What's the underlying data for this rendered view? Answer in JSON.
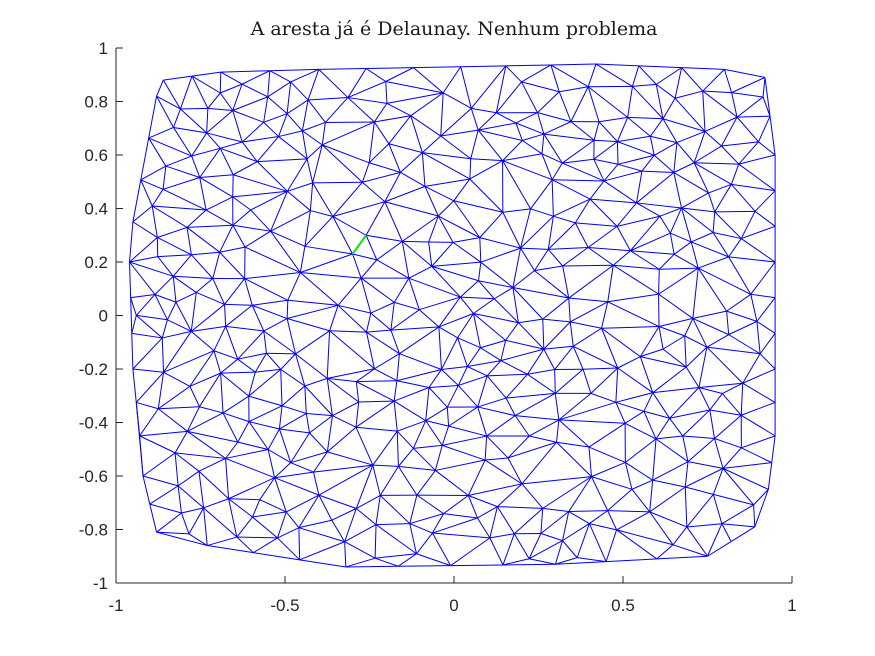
{
  "chart_data": {
    "type": "mesh",
    "title": "A aresta já é Delaunay. Nenhum problema",
    "xlabel": "",
    "ylabel": "",
    "xlim": [
      -1,
      1
    ],
    "ylim": [
      -1,
      1
    ],
    "xticks": [
      "-1",
      "-0.5",
      "0",
      "0.5",
      "1"
    ],
    "yticks": [
      "1",
      "0.8",
      "0.6",
      "0.4",
      "0.2",
      "0",
      "-0.2",
      "-0.4",
      "-0.6",
      "-0.8",
      "-1"
    ],
    "grid": false,
    "mesh_color": "#0000ee",
    "highlight_color": "#22dd22",
    "hull": [
      [
        -0.95,
        0.35
      ],
      [
        -0.88,
        0.82
      ],
      [
        -0.86,
        0.88
      ],
      [
        -0.69,
        0.91
      ],
      [
        -0.4,
        0.92
      ],
      [
        0.02,
        0.93
      ],
      [
        0.42,
        0.94
      ],
      [
        0.8,
        0.92
      ],
      [
        0.92,
        0.89
      ],
      [
        0.95,
        0.6
      ],
      [
        0.95,
        0.2
      ],
      [
        0.95,
        -0.2
      ],
      [
        0.95,
        -0.45
      ],
      [
        0.93,
        -0.65
      ],
      [
        0.89,
        -0.79
      ],
      [
        0.75,
        -0.9
      ],
      [
        0.3,
        -0.93
      ],
      [
        -0.32,
        -0.94
      ],
      [
        -0.73,
        -0.86
      ],
      [
        -0.88,
        -0.81
      ],
      [
        -0.92,
        -0.6
      ],
      [
        -0.93,
        -0.45
      ],
      [
        -0.95,
        -0.2
      ],
      [
        -0.96,
        0.2
      ]
    ],
    "highlighted_edge": [
      [
        -0.3,
        0.23
      ],
      [
        -0.26,
        0.3
      ]
    ]
  }
}
